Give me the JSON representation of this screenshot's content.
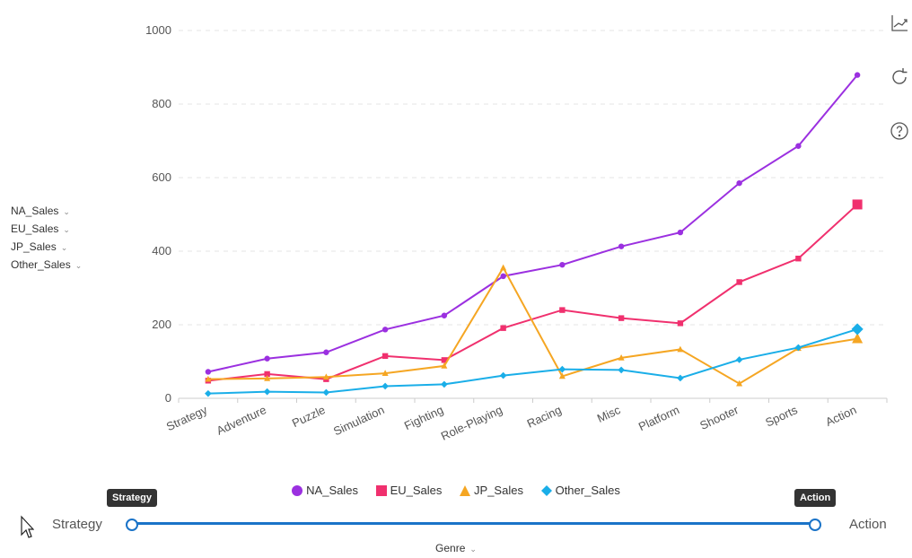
{
  "chart_data": {
    "type": "line",
    "categories": [
      "Strategy",
      "Adventure",
      "Puzzle",
      "Simulation",
      "Fighting",
      "Role-Playing",
      "Racing",
      "Misc",
      "Platform",
      "Shooter",
      "Sports",
      "Action"
    ],
    "series": [
      {
        "name": "NA_Sales",
        "color": "#9b30e0",
        "marker": "circle",
        "values": [
          72,
          108,
          125,
          187,
          225,
          332,
          363,
          413,
          451,
          585,
          686,
          879
        ]
      },
      {
        "name": "EU_Sales",
        "color": "#f0306e",
        "marker": "square",
        "values": [
          48,
          66,
          52,
          115,
          104,
          191,
          240,
          218,
          204,
          316,
          380,
          527
        ]
      },
      {
        "name": "JP_Sales",
        "color": "#f5a623",
        "marker": "triangle",
        "values": [
          52,
          54,
          58,
          68,
          88,
          355,
          60,
          110,
          133,
          40,
          136,
          162
        ]
      },
      {
        "name": "Other_Sales",
        "color": "#1aaee8",
        "marker": "diamond",
        "values": [
          13,
          18,
          16,
          33,
          38,
          62,
          79,
          77,
          55,
          105,
          138,
          188
        ]
      }
    ],
    "yticks": [
      "0",
      "200",
      "400",
      "600",
      "800",
      "1000"
    ],
    "ylim": [
      0,
      1000
    ],
    "grid": true,
    "legend_position": "bottom"
  },
  "field_list": [
    "NA_Sales",
    "EU_Sales",
    "JP_Sales",
    "Other_Sales"
  ],
  "toolbox": [
    "axis-swap-icon",
    "refresh-icon",
    "help-icon"
  ],
  "slider": {
    "min_label": "Strategy",
    "max_label": "Action",
    "start_tip": "Strategy",
    "end_tip": "Action",
    "start_fraction": 0,
    "end_fraction": 1
  },
  "genre_label": "Genre",
  "colors": {
    "slider": "#1a73c8",
    "tooltip": "#333333"
  }
}
